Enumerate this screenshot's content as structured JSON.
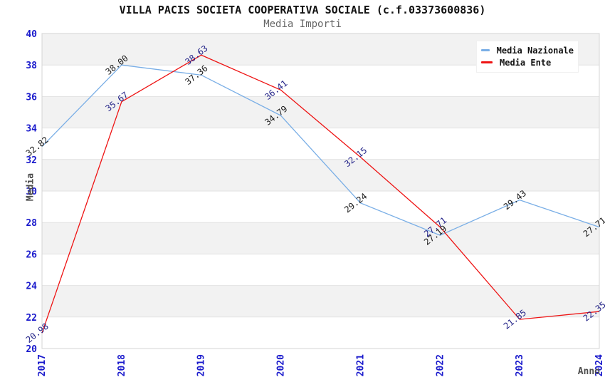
{
  "header": {
    "title": "VILLA PACIS SOCIETA COOPERATIVA SOCIALE (c.f.03373600836)",
    "subtitle": "Media Importi"
  },
  "chart_data": {
    "type": "line",
    "x": [
      "2017",
      "2018",
      "2019",
      "2020",
      "2021",
      "2022",
      "2023",
      "2024"
    ],
    "series": [
      {
        "name": "Media Nazionale",
        "color": "#79aee6",
        "label_color": "#1a1a1a",
        "values": [
          32.82,
          38.0,
          37.36,
          34.79,
          29.24,
          27.19,
          29.43,
          27.71
        ]
      },
      {
        "name": "Media Ente",
        "color": "#ee1313",
        "label_color": "#232388",
        "values": [
          20.98,
          35.67,
          38.63,
          36.41,
          32.15,
          27.71,
          21.85,
          22.35
        ]
      }
    ],
    "xlabel": "Anno",
    "ylabel": "Media",
    "ylim": [
      20,
      40
    ],
    "ytick_step": 2,
    "yticks": [
      20,
      22,
      24,
      26,
      28,
      30,
      32,
      34,
      36,
      38,
      40
    ],
    "grid": "horizontal-bands",
    "legend_position": "top-right",
    "colors": {
      "band_gray": "#f2f2f2",
      "band_white": "#ffffff",
      "gridline": "#e2e2e2",
      "plot_border": "#d4d4d4",
      "tick_label": "#1a1acc",
      "axis_title": "#4d4d4d",
      "title": "#111111",
      "subtitle": "#666666"
    }
  }
}
